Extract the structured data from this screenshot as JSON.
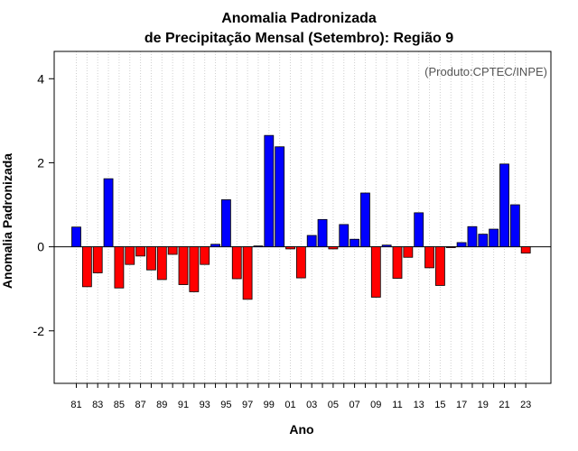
{
  "chart_data": {
    "type": "bar",
    "title": "Anomalia Padronizada",
    "subtitle": "de Precipitação Mensal (Setembro): Região 9",
    "xlabel": "Ano",
    "ylabel": "Anomalia Padronizada",
    "annotation": "(Produto:CPTEC/INPE)",
    "ylim": [
      -3.25,
      4.65
    ],
    "yticks": [
      -2,
      0,
      2,
      4
    ],
    "yticklabels": [
      "-2",
      "0",
      "2",
      "4"
    ],
    "grid": "vertical dotted",
    "zero_line": 0,
    "positive_color": "#0000ff",
    "negative_color": "#ff0000",
    "categories": [
      "1981",
      "1982",
      "1983",
      "1984",
      "1985",
      "1986",
      "1987",
      "1988",
      "1989",
      "1990",
      "1991",
      "1992",
      "1993",
      "1994",
      "1995",
      "1996",
      "1997",
      "1998",
      "1999",
      "2000",
      "2001",
      "2002",
      "2003",
      "2004",
      "2005",
      "2006",
      "2007",
      "2008",
      "2009",
      "2010",
      "2011",
      "2012",
      "2013",
      "2014",
      "2015",
      "2016",
      "2017",
      "2018",
      "2019",
      "2020",
      "2021",
      "2022",
      "2023"
    ],
    "values": [
      0.47,
      -0.95,
      -0.62,
      1.62,
      -0.98,
      -0.42,
      -0.22,
      -0.55,
      -0.78,
      -0.18,
      -0.9,
      -1.07,
      -0.42,
      0.06,
      1.12,
      -0.76,
      -1.25,
      0.02,
      2.65,
      2.38,
      -0.05,
      -0.74,
      0.27,
      0.65,
      -0.05,
      0.53,
      0.18,
      1.28,
      -1.2,
      0.04,
      -0.75,
      -0.25,
      0.81,
      -0.5,
      -0.92,
      -0.02,
      0.1,
      0.48,
      0.3,
      0.42,
      1.97,
      1.0,
      -0.15
    ],
    "xticks_shown": [
      "81",
      "83",
      "85",
      "87",
      "89",
      "91",
      "93",
      "95",
      "97",
      "99",
      "01",
      "03",
      "05",
      "07",
      "09",
      "11",
      "13",
      "15",
      "17",
      "19",
      "21",
      "23"
    ]
  }
}
